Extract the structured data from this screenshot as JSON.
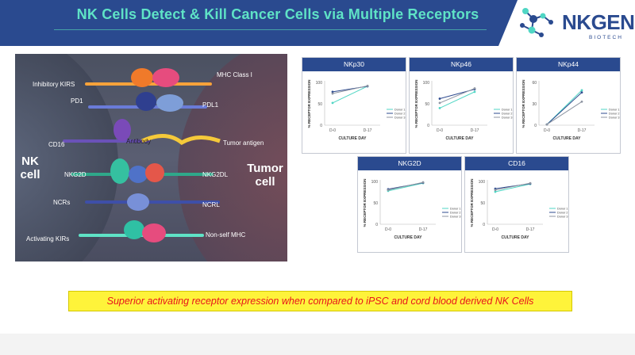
{
  "header": {
    "title": "NK Cells Detect & Kill Cancer Cells via Multiple Receptors",
    "logo_text_nk": "NK",
    "logo_text_gen": "GEN",
    "logo_sub": "BIOTECH"
  },
  "diagram": {
    "left_cell": "NK\ncell",
    "right_cell": "Tumor\ncell",
    "left_labels": [
      "Inhibitory KIRS",
      "PD1",
      "CD16",
      "NKG2D",
      "NCRs",
      "Activating KIRs"
    ],
    "right_labels": [
      "MHC Class I",
      "PDL1",
      "Tumor antigen",
      "NKG2DL",
      "NCRL",
      "Non-self MHC"
    ],
    "center_label": "Antibody"
  },
  "chart_data": [
    {
      "type": "line",
      "title": "NKp30",
      "xlabel": "CULTURE DAY",
      "ylabel": "% RECEPTOR EXPRESSION",
      "categories": [
        "D-0",
        "D-17"
      ],
      "ylim": [
        0,
        100
      ],
      "yticks": [
        0,
        50,
        100
      ],
      "series": [
        {
          "name": "Donor 1",
          "values": [
            52,
            91
          ]
        },
        {
          "name": "Donor 2",
          "values": [
            78,
            91
          ]
        },
        {
          "name": "Donor 3",
          "values": [
            74,
            92
          ]
        }
      ]
    },
    {
      "type": "line",
      "title": "NKp46",
      "xlabel": "CULTURE DAY",
      "ylabel": "% RECEPTOR EXPRESSION",
      "categories": [
        "D-0",
        "D-17"
      ],
      "ylim": [
        0,
        100
      ],
      "yticks": [
        0,
        50,
        100
      ],
      "series": [
        {
          "name": "Donor 1",
          "values": [
            40,
            78
          ]
        },
        {
          "name": "Donor 2",
          "values": [
            62,
            84
          ]
        },
        {
          "name": "Donor 3",
          "values": [
            52,
            86
          ]
        }
      ]
    },
    {
      "type": "line",
      "title": "NKp44",
      "xlabel": "CULTURE DAY",
      "ylabel": "% RECEPTOR EXPRESSION",
      "categories": [
        "D-0",
        "D-17"
      ],
      "ylim": [
        0,
        60
      ],
      "yticks": [
        0,
        30,
        60
      ],
      "series": [
        {
          "name": "Donor 1",
          "values": [
            1,
            49
          ]
        },
        {
          "name": "Donor 2",
          "values": [
            1,
            46
          ]
        },
        {
          "name": "Donor 3",
          "values": [
            1,
            33
          ]
        }
      ]
    },
    {
      "type": "line",
      "title": "NKG2D",
      "xlabel": "CULTURE DAY",
      "ylabel": "% RECEPTOR EXPRESSION",
      "categories": [
        "D-0",
        "D-17"
      ],
      "ylim": [
        0,
        100
      ],
      "yticks": [
        0,
        50,
        100
      ],
      "series": [
        {
          "name": "Donor 1",
          "values": [
            78,
            96
          ]
        },
        {
          "name": "Donor 2",
          "values": [
            82,
            97
          ]
        },
        {
          "name": "Donor 3",
          "values": [
            80,
            98
          ]
        }
      ]
    },
    {
      "type": "line",
      "title": "CD16",
      "xlabel": "CULTURE DAY",
      "ylabel": "% RECEPTOR EXPRESSION",
      "categories": [
        "D-0",
        "D-17"
      ],
      "ylim": [
        0,
        100
      ],
      "yticks": [
        0,
        50,
        100
      ],
      "series": [
        {
          "name": "Donor 1",
          "values": [
            76,
            94
          ]
        },
        {
          "name": "Donor 2",
          "values": [
            83,
            95
          ]
        },
        {
          "name": "Donor 3",
          "values": [
            80,
            96
          ]
        }
      ]
    }
  ],
  "colors": {
    "header": "#2a4a8f",
    "title": "#5fe3c6",
    "panel_title_bg": "#2a4a8f",
    "series": [
      "#4fd6c4",
      "#2e4b8f",
      "#8f96a3"
    ],
    "footer_bg": "#fef33a",
    "footer_text": "#e8141c"
  },
  "footer": {
    "text": "Superior activating receptor expression when compared to iPSC and cord blood derived NK Cells"
  }
}
